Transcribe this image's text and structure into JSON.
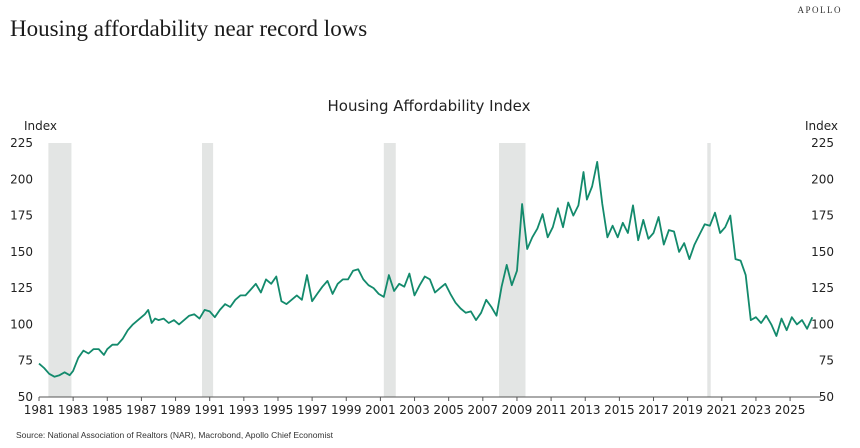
{
  "header": {
    "headline": "Housing affordability near record lows",
    "brand": "APOLLO"
  },
  "footer": {
    "source": "Source: National Association of Realtors (NAR), Macrobond, Apollo Chief Economist"
  },
  "colors": {
    "line": "#138a6c",
    "recession": "#e3e5e4",
    "axis": "#555555"
  },
  "chart_data": {
    "type": "line",
    "title": "Housing Affordability Index",
    "ylabel_left": "Index",
    "ylabel_right": "Index",
    "xlabel": "",
    "ylim": [
      50,
      225
    ],
    "xlim": [
      1981,
      2026.8
    ],
    "yticks": [
      50,
      75,
      100,
      125,
      150,
      175,
      200,
      225
    ],
    "xticks": [
      1981,
      1983,
      1985,
      1987,
      1989,
      1991,
      1993,
      1995,
      1997,
      1999,
      2001,
      2003,
      2005,
      2007,
      2009,
      2011,
      2013,
      2015,
      2017,
      2019,
      2021,
      2023,
      2025
    ],
    "grid": false,
    "legend": "none",
    "recessions": [
      [
        1981.55,
        1982.9
      ],
      [
        1990.55,
        1991.2
      ],
      [
        2001.2,
        2001.9
      ],
      [
        2007.95,
        2009.5
      ],
      [
        2020.15,
        2020.35
      ]
    ],
    "series": [
      {
        "name": "Housing Affordability Index",
        "x": [
          1981.0,
          1981.3,
          1981.6,
          1981.9,
          1982.2,
          1982.5,
          1982.8,
          1983.0,
          1983.3,
          1983.6,
          1983.9,
          1984.2,
          1984.5,
          1984.8,
          1985.0,
          1985.3,
          1985.6,
          1985.9,
          1986.2,
          1986.5,
          1986.8,
          1987.0,
          1987.2,
          1987.4,
          1987.6,
          1987.8,
          1988.0,
          1988.3,
          1988.6,
          1988.9,
          1989.2,
          1989.5,
          1989.8,
          1990.1,
          1990.4,
          1990.7,
          1991.0,
          1991.3,
          1991.6,
          1991.9,
          1992.2,
          1992.5,
          1992.8,
          1993.1,
          1993.4,
          1993.7,
          1994.0,
          1994.3,
          1994.6,
          1994.9,
          1995.2,
          1995.5,
          1995.8,
          1996.1,
          1996.4,
          1996.7,
          1997.0,
          1997.3,
          1997.6,
          1997.9,
          1998.2,
          1998.5,
          1998.8,
          1999.1,
          1999.4,
          1999.7,
          2000.0,
          2000.3,
          2000.6,
          2000.9,
          2001.2,
          2001.5,
          2001.8,
          2002.1,
          2002.4,
          2002.7,
          2003.0,
          2003.3,
          2003.6,
          2003.9,
          2004.2,
          2004.5,
          2004.8,
          2005.1,
          2005.4,
          2005.7,
          2006.0,
          2006.3,
          2006.6,
          2006.9,
          2007.2,
          2007.5,
          2007.8,
          2008.1,
          2008.4,
          2008.7,
          2009.0,
          2009.3,
          2009.6,
          2009.9,
          2010.2,
          2010.5,
          2010.8,
          2011.1,
          2011.4,
          2011.7,
          2012.0,
          2012.3,
          2012.6,
          2012.9,
          2013.1,
          2013.4,
          2013.7,
          2014.0,
          2014.3,
          2014.6,
          2014.9,
          2015.2,
          2015.5,
          2015.8,
          2016.1,
          2016.4,
          2016.7,
          2017.0,
          2017.3,
          2017.6,
          2017.9,
          2018.2,
          2018.5,
          2018.8,
          2019.1,
          2019.4,
          2019.7,
          2020.0,
          2020.3,
          2020.6,
          2020.9,
          2021.2,
          2021.5,
          2021.8,
          2022.1,
          2022.4,
          2022.7,
          2023.0,
          2023.3,
          2023.6,
          2023.9,
          2024.2,
          2024.5,
          2024.8,
          2025.1,
          2025.4,
          2025.7,
          2026.0,
          2026.3
        ],
        "values": [
          73,
          70,
          66,
          64,
          65,
          67,
          65,
          68,
          77,
          82,
          80,
          83,
          83,
          79,
          83,
          86,
          86,
          90,
          96,
          100,
          103,
          105,
          107,
          110,
          101,
          104,
          103,
          104,
          101,
          103,
          100,
          103,
          106,
          107,
          104,
          110,
          109,
          105,
          110,
          114,
          112,
          117,
          120,
          120,
          124,
          128,
          122,
          131,
          128,
          133,
          116,
          114,
          117,
          120,
          117,
          134,
          116,
          121,
          126,
          130,
          121,
          128,
          131,
          131,
          137,
          138,
          131,
          127,
          125,
          121,
          119,
          134,
          123,
          128,
          126,
          135,
          120,
          127,
          133,
          131,
          122,
          125,
          128,
          121,
          115,
          111,
          108,
          109,
          103,
          108,
          117,
          112,
          106,
          126,
          141,
          127,
          137,
          183,
          152,
          160,
          166,
          176,
          160,
          167,
          180,
          167,
          184,
          175,
          182,
          205,
          186,
          195,
          212,
          183,
          160,
          168,
          160,
          170,
          163,
          182,
          158,
          172,
          159,
          163,
          174,
          155,
          165,
          164,
          150,
          156,
          145,
          155,
          162,
          169,
          168,
          177,
          163,
          167,
          175,
          145,
          144,
          134,
          103,
          105,
          101,
          106,
          100,
          92,
          104,
          96,
          105,
          100,
          103,
          97,
          105
        ]
      }
    ]
  }
}
